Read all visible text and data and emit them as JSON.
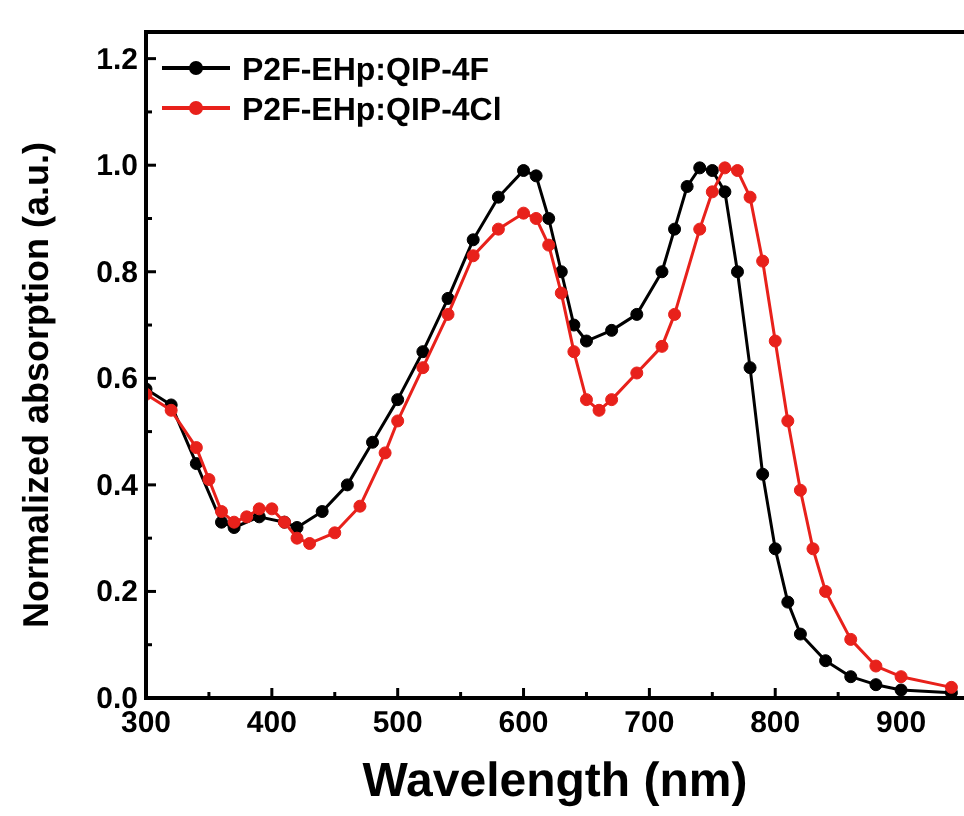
{
  "chart_data": {
    "type": "line",
    "xlabel": "Wavelength (nm)",
    "ylabel": "Normalized absorption (a.u.)",
    "xlim": [
      300,
      950
    ],
    "ylim": [
      0,
      1.25
    ],
    "xticks": [
      300,
      {
        "value": 350,
        "label": null
      },
      400,
      {
        "value": 450,
        "label": null
      },
      500,
      {
        "value": 550,
        "label": null
      },
      600,
      {
        "value": 650,
        "label": null
      },
      700,
      {
        "value": 750,
        "label": null
      },
      800,
      {
        "value": 850,
        "label": null
      },
      900
    ],
    "yticks": [
      {
        "value": 0,
        "label": "0.0"
      },
      {
        "value": 0.1,
        "label": null
      },
      0.2,
      {
        "value": 0.3,
        "label": null
      },
      0.4,
      {
        "value": 0.5,
        "label": null
      },
      0.6,
      {
        "value": 0.7,
        "label": null
      },
      0.8,
      {
        "value": 0.9,
        "label": null
      },
      {
        "value": 1,
        "label": "1.0"
      },
      {
        "value": 1.1,
        "label": null
      },
      1.2
    ],
    "legend": "top left",
    "marker": "circle",
    "line_style": "solid",
    "grid": false,
    "series": [
      {
        "name": "P2F-EHp:QIP-4F",
        "color": "#000000",
        "x": [
          300,
          320,
          340,
          360,
          370,
          390,
          410,
          420,
          440,
          460,
          480,
          500,
          520,
          540,
          560,
          580,
          600,
          610,
          620,
          630,
          640,
          650,
          670,
          690,
          710,
          720,
          730,
          740,
          750,
          760,
          770,
          780,
          790,
          800,
          810,
          820,
          840,
          860,
          880,
          900,
          940
        ],
        "values": [
          0.58,
          0.55,
          0.44,
          0.33,
          0.32,
          0.34,
          0.33,
          0.32,
          0.35,
          0.4,
          0.48,
          0.56,
          0.65,
          0.75,
          0.86,
          0.94,
          0.99,
          0.98,
          0.9,
          0.8,
          0.7,
          0.67,
          0.69,
          0.72,
          0.8,
          0.88,
          0.96,
          0.995,
          0.99,
          0.95,
          0.8,
          0.62,
          0.42,
          0.28,
          0.18,
          0.12,
          0.07,
          0.04,
          0.025,
          0.015,
          0.01
        ]
      },
      {
        "name": "P2F-EHp:QIP-4Cl",
        "color": "#e8211b",
        "x": [
          300,
          320,
          340,
          350,
          360,
          370,
          380,
          390,
          400,
          410,
          420,
          430,
          450,
          470,
          490,
          500,
          520,
          540,
          560,
          580,
          600,
          610,
          620,
          630,
          640,
          650,
          660,
          670,
          690,
          710,
          720,
          740,
          750,
          760,
          770,
          780,
          790,
          800,
          810,
          820,
          830,
          840,
          860,
          880,
          900,
          940
        ],
        "values": [
          0.57,
          0.54,
          0.47,
          0.41,
          0.35,
          0.33,
          0.34,
          0.355,
          0.355,
          0.33,
          0.3,
          0.29,
          0.31,
          0.36,
          0.46,
          0.52,
          0.62,
          0.72,
          0.83,
          0.88,
          0.91,
          0.9,
          0.85,
          0.76,
          0.65,
          0.56,
          0.54,
          0.56,
          0.61,
          0.66,
          0.72,
          0.88,
          0.95,
          0.995,
          0.99,
          0.94,
          0.82,
          0.67,
          0.52,
          0.39,
          0.28,
          0.2,
          0.11,
          0.06,
          0.04,
          0.02
        ]
      }
    ]
  }
}
